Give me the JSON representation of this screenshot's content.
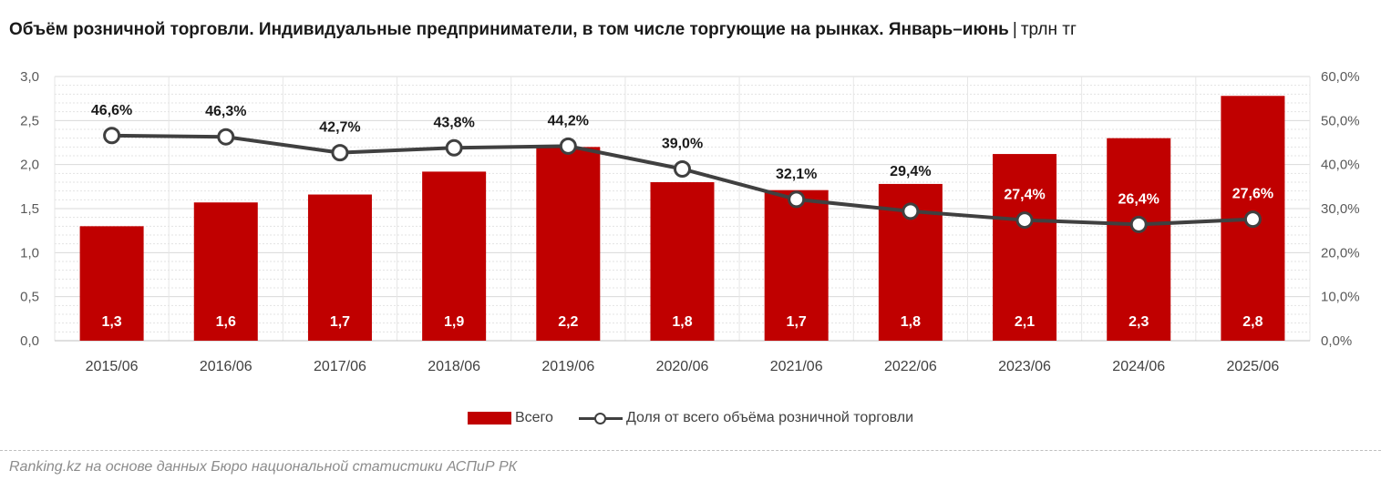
{
  "title": {
    "main": "Объём розничной торговли. Индивидуальные предприниматели, в том числе торгующие на рынках. Январь–июнь",
    "separator": "|",
    "unit": "трлн тг"
  },
  "colors": {
    "bar": "#c00000",
    "line": "#404040",
    "grid": "#d9d9d9"
  },
  "chart_data": {
    "type": "bar+line",
    "categories": [
      "2015/06",
      "2016/06",
      "2017/06",
      "2018/06",
      "2019/06",
      "2020/06",
      "2021/06",
      "2022/06",
      "2023/06",
      "2024/06",
      "2025/06"
    ],
    "series": [
      {
        "name": "Всего",
        "type": "bar",
        "axis": "left",
        "values": [
          1.3,
          1.57,
          1.66,
          1.92,
          2.2,
          1.8,
          1.71,
          1.78,
          2.12,
          2.3,
          2.78
        ],
        "labels": [
          "1,3",
          "1,6",
          "1,7",
          "1,9",
          "2,2",
          "1,8",
          "1,7",
          "1,8",
          "2,1",
          "2,3",
          "2,8"
        ]
      },
      {
        "name": "Доля от всего объёма розничной торговли",
        "type": "line",
        "axis": "right",
        "values": [
          46.6,
          46.3,
          42.7,
          43.8,
          44.2,
          39.0,
          32.1,
          29.4,
          27.4,
          26.4,
          27.6
        ],
        "labels": [
          "46,6%",
          "46,3%",
          "42,7%",
          "43,8%",
          "44,2%",
          "39,0%",
          "32,1%",
          "29,4%",
          "27,4%",
          "26,4%",
          "27,6%"
        ]
      }
    ],
    "left_axis": {
      "min": 0,
      "max": 3.0,
      "ticks": [
        "0,0",
        "0,5",
        "1,0",
        "1,5",
        "2,0",
        "2,5",
        "3,0"
      ]
    },
    "right_axis": {
      "min": 0,
      "max": 60,
      "ticks": [
        "0,0%",
        "10,0%",
        "20,0%",
        "30,0%",
        "40,0%",
        "50,0%",
        "60,0%"
      ]
    },
    "legend": [
      "Всего",
      "Доля от всего объёма розничной торговли"
    ],
    "legend_position": "bottom"
  },
  "source": "Ranking.kz на основе данных Бюро национальной статистики АСПиР РК"
}
